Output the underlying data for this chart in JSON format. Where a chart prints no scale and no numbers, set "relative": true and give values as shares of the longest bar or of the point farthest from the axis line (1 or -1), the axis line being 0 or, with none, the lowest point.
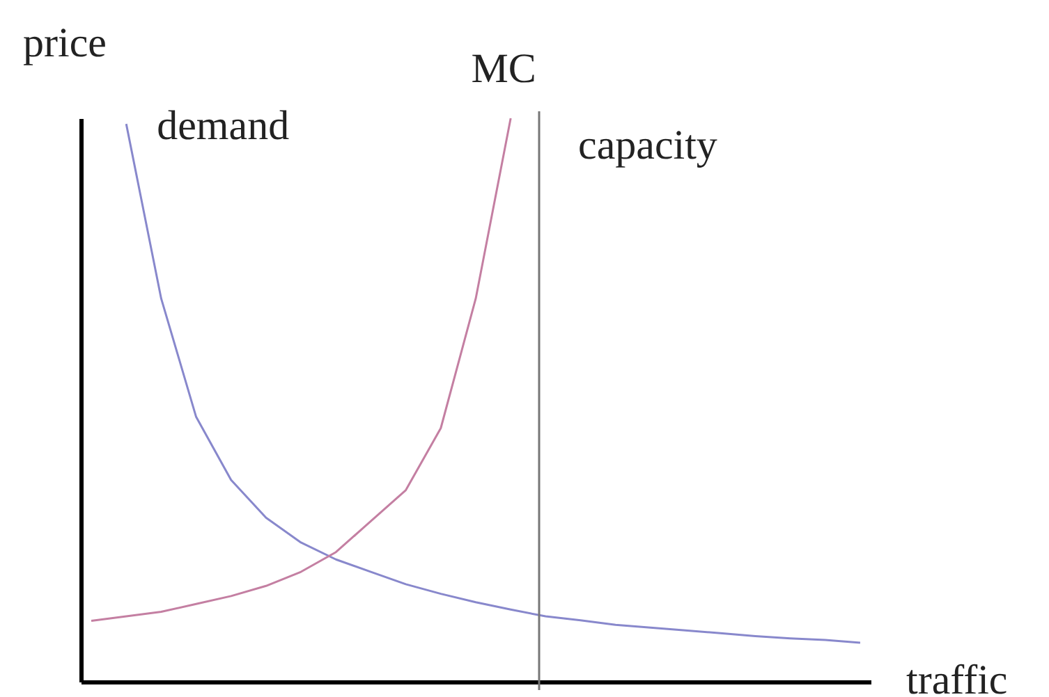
{
  "chart_data": {
    "type": "line",
    "relative": true,
    "xlabel": "traffic",
    "ylabel": "price",
    "categories": [
      null,
      null,
      null,
      null,
      null,
      null,
      null,
      null,
      null,
      null,
      null,
      null,
      null,
      null,
      null,
      null,
      null,
      null,
      null,
      null,
      null,
      null,
      null
    ],
    "series": [
      {
        "name": "demand",
        "color": "#8888cc",
        "values": [
          null,
          0.99,
          0.68,
          0.47,
          0.358,
          0.291,
          0.247,
          0.217,
          0.195,
          0.173,
          0.156,
          0.141,
          0.128,
          0.116,
          0.109,
          0.101,
          0.096,
          0.091,
          0.086,
          0.081,
          0.077,
          0.074,
          0.069
        ]
      },
      {
        "name": "MC",
        "color": "#c47fa2",
        "values": [
          0.108,
          0.116,
          0.124,
          0.138,
          0.152,
          0.17,
          0.195,
          0.23,
          0.285,
          0.34,
          0.45,
          0.68,
          1.0,
          null,
          null,
          null,
          null,
          null,
          null,
          null,
          null,
          null,
          null
        ]
      }
    ],
    "annotations": [
      "capacity"
    ],
    "grid": false,
    "legend": false,
    "tick_labels": false,
    "marker": "none",
    "line_style": "solid"
  }
}
